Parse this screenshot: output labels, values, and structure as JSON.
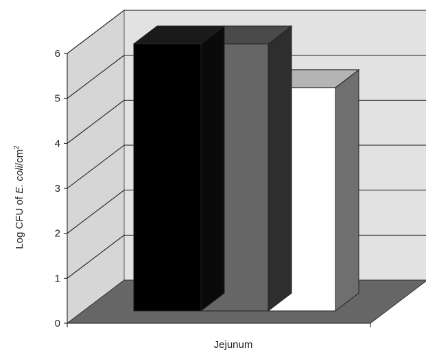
{
  "chart_data": {
    "type": "bar",
    "style": "3d",
    "categories": [
      "Jejunum"
    ],
    "series": [
      {
        "values": [
          6.1
        ],
        "color": "#000000"
      },
      {
        "values": [
          6.1
        ],
        "color": "#666666"
      },
      {
        "values": [
          5.1
        ],
        "color": "#ffffff"
      }
    ],
    "xlabel": "Jejunum",
    "ylabel_prefix": "Log CFU of ",
    "ylabel_italic": "E. coli",
    "ylabel_suffix": "/cm",
    "ylabel_superscript": "2",
    "ylim": [
      0,
      6
    ],
    "yticks": [
      "0",
      "1",
      "2",
      "3",
      "4",
      "5",
      "6"
    ],
    "grid": true,
    "colors": {
      "back_wall": "#e2e2e2",
      "side_wall": "#d6d6d6",
      "floor": "#666666",
      "gridline": "#111111"
    }
  }
}
